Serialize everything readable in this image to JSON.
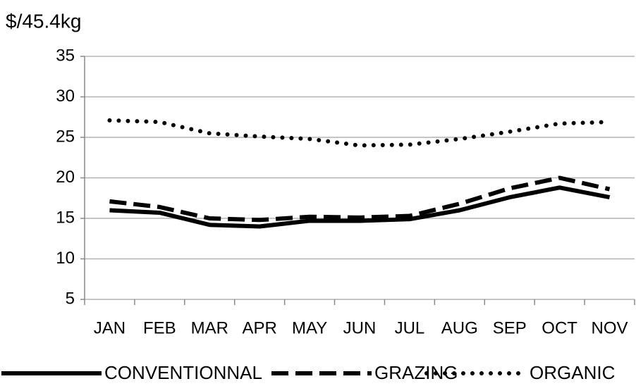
{
  "chart_data": {
    "type": "line",
    "ylabel": "$/45.4kg",
    "categories": [
      "JAN",
      "FEB",
      "MAR",
      "APR",
      "MAY",
      "JUN",
      "JUL",
      "AUG",
      "SEP",
      "OCT",
      "NOV"
    ],
    "series": [
      {
        "name": "CONVENTIONNAL",
        "color": "#000000",
        "style": "solid",
        "values": [
          16.0,
          15.7,
          14.2,
          14.0,
          14.7,
          14.7,
          14.9,
          16.0,
          17.6,
          18.8,
          17.6
        ]
      },
      {
        "name": "GRAZING",
        "color": "#000000",
        "style": "dashed",
        "values": [
          17.1,
          16.4,
          15.0,
          14.8,
          15.2,
          15.1,
          15.3,
          16.8,
          18.7,
          20.0,
          18.6
        ]
      },
      {
        "name": "ORGANIC",
        "color": "#000000",
        "style": "dotted",
        "values": [
          27.1,
          26.9,
          25.5,
          25.1,
          24.8,
          24.0,
          24.1,
          24.8,
          25.7,
          26.7,
          26.9
        ]
      }
    ],
    "ylim": [
      5,
      35
    ],
    "yticks": [
      5,
      10,
      15,
      20,
      25,
      30,
      35
    ],
    "grid": true,
    "legend": "bottom"
  }
}
